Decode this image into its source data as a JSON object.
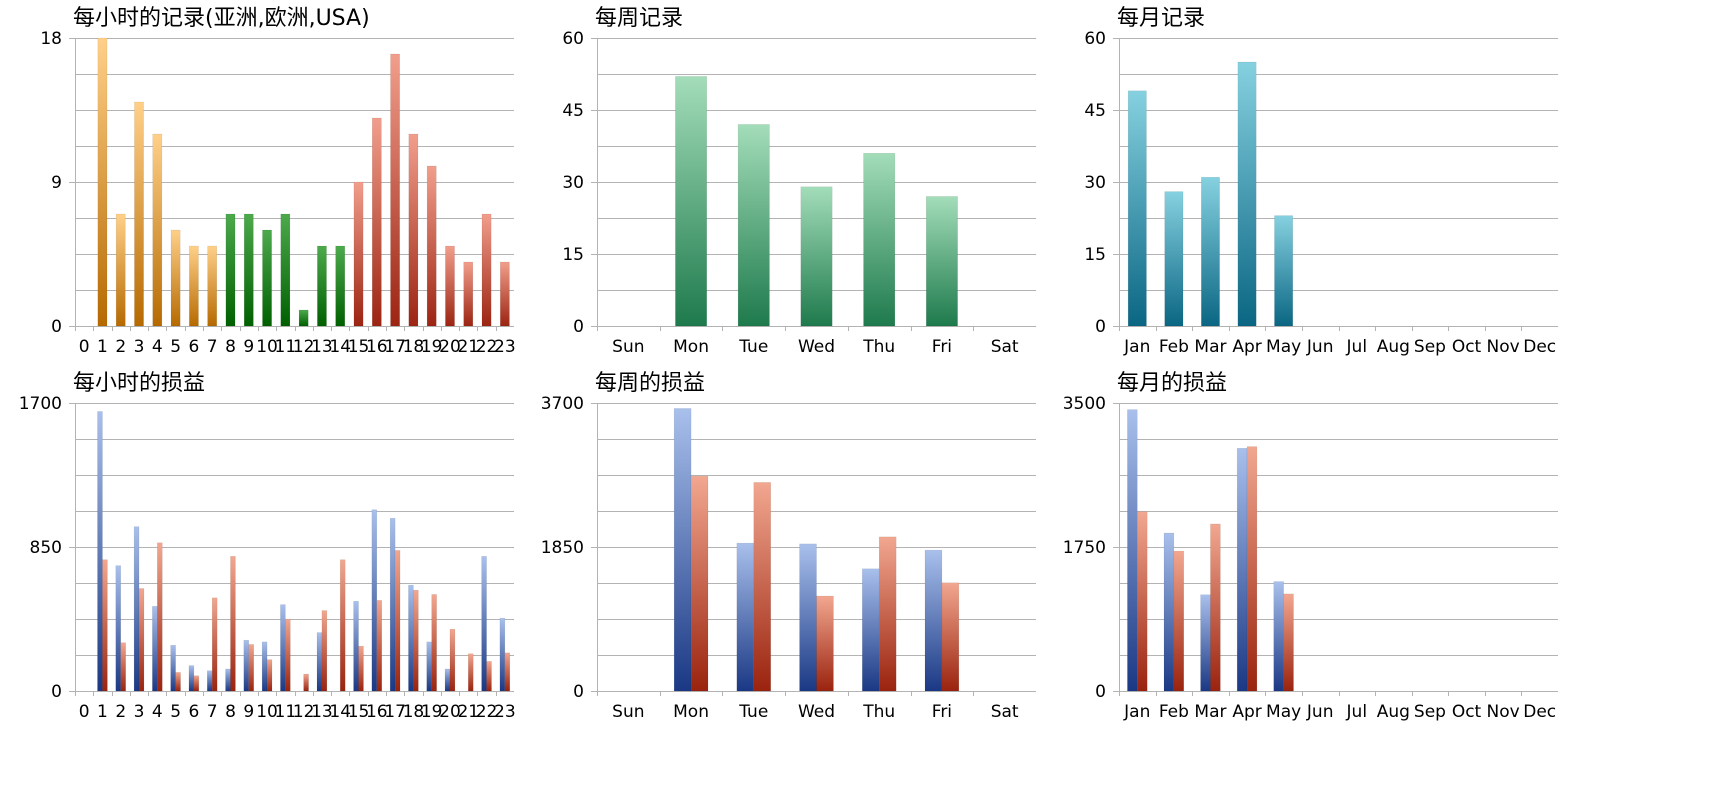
{
  "colors": {
    "hourly_asia_top": "#FFD089",
    "hourly_asia_bottom": "#B66A00",
    "hourly_europe_top": "#4CA94C",
    "hourly_europe_bottom": "#006000",
    "hourly_usa_top": "#F29E8C",
    "hourly_usa_bottom": "#9C2412",
    "weekly_top": "#A3DDB9",
    "weekly_bottom": "#1E7A4C",
    "monthly_top": "#86D1E0",
    "monthly_bottom": "#0A6683",
    "profit_blue_top": "#A9C0EC",
    "profit_blue_bottom": "#1A3884",
    "profit_red_top": "#F2A790",
    "profit_red_bottom": "#9A230E",
    "gridline": "#b3b3b3"
  },
  "chart_data": [
    {
      "type": "bar",
      "title": "每小时的记录(亚洲,欧洲,USA)",
      "categories": [
        "0",
        "1",
        "2",
        "3",
        "4",
        "5",
        "6",
        "7",
        "8",
        "9",
        "10",
        "11",
        "12",
        "13",
        "14",
        "15",
        "16",
        "17",
        "18",
        "19",
        "20",
        "21",
        "22",
        "23"
      ],
      "values": [
        0,
        18,
        7,
        14,
        12,
        6,
        5,
        5,
        7,
        7,
        6,
        7,
        1,
        5,
        5,
        9,
        13,
        17,
        12,
        10,
        5,
        4,
        7,
        4
      ],
      "ylim": [
        0,
        18
      ],
      "yticks": [
        "0",
        "9",
        "18"
      ],
      "minor_step": 2.25,
      "grid": true,
      "color_groups": [
        {
          "from": 0,
          "to": 7,
          "color_top": "#FFD089",
          "color_bottom": "#B66A00"
        },
        {
          "from": 8,
          "to": 14,
          "color_top": "#4CA94C",
          "color_bottom": "#006000"
        },
        {
          "from": 15,
          "to": 23,
          "color_top": "#F29E8C",
          "color_bottom": "#9C2412"
        }
      ]
    },
    {
      "type": "bar",
      "title": "每周记录",
      "categories": [
        "Sun",
        "Mon",
        "Tue",
        "Wed",
        "Thu",
        "Fri",
        "Sat"
      ],
      "values": [
        0,
        52,
        42,
        29,
        36,
        27,
        0
      ],
      "ylim": [
        0,
        60
      ],
      "yticks": [
        "0",
        "15",
        "30",
        "45",
        "60"
      ],
      "minor_step": 7.5,
      "grid": true,
      "color_top": "#A3DDB9",
      "color_bottom": "#1E7A4C"
    },
    {
      "type": "bar",
      "title": "每月记录",
      "categories": [
        "Jan",
        "Feb",
        "Mar",
        "Apr",
        "May",
        "Jun",
        "Jul",
        "Aug",
        "Sep",
        "Oct",
        "Nov",
        "Dec"
      ],
      "values": [
        49,
        28,
        31,
        55,
        23,
        0,
        0,
        0,
        0,
        0,
        0,
        0
      ],
      "ylim": [
        0,
        60
      ],
      "yticks": [
        "0",
        "15",
        "30",
        "45",
        "60"
      ],
      "minor_step": 7.5,
      "grid": true,
      "color_top": "#86D1E0",
      "color_bottom": "#0A6683"
    },
    {
      "type": "bar",
      "title": "每小时的损益",
      "categories": [
        "0",
        "1",
        "2",
        "3",
        "4",
        "5",
        "6",
        "7",
        "8",
        "9",
        "10",
        "11",
        "12",
        "13",
        "14",
        "15",
        "16",
        "17",
        "18",
        "19",
        "20",
        "21",
        "22",
        "23"
      ],
      "series": [
        {
          "values": [
            0,
            1650,
            740,
            970,
            500,
            270,
            150,
            120,
            130,
            300,
            290,
            510,
            0,
            345,
            0,
            530,
            1070,
            1020,
            625,
            290,
            130,
            0,
            795,
            430
          ]
        },
        {
          "values": [
            0,
            775,
            285,
            605,
            875,
            110,
            90,
            550,
            795,
            275,
            185,
            425,
            100,
            475,
            775,
            265,
            535,
            830,
            595,
            570,
            365,
            220,
            175,
            225
          ]
        }
      ],
      "ylim": [
        0,
        1700
      ],
      "yticks": [
        "0",
        "850",
        "1700"
      ],
      "minor_step": 212.5,
      "grid": true
    },
    {
      "type": "bar",
      "title": "每周的损益",
      "categories": [
        "Sun",
        "Mon",
        "Tue",
        "Wed",
        "Thu",
        "Fri",
        "Sat"
      ],
      "series": [
        {
          "values": [
            0,
            3630,
            1900,
            1890,
            1570,
            1810,
            0
          ]
        },
        {
          "values": [
            0,
            2760,
            2680,
            1220,
            1980,
            1390,
            0
          ]
        }
      ],
      "ylim": [
        0,
        3700
      ],
      "yticks": [
        "0",
        "1850",
        "3700"
      ],
      "minor_step": 462.5,
      "grid": true
    },
    {
      "type": "bar",
      "title": "每月的损益",
      "categories": [
        "Jan",
        "Feb",
        "Mar",
        "Apr",
        "May",
        "Jun",
        "Jul",
        "Aug",
        "Sep",
        "Oct",
        "Nov",
        "Dec"
      ],
      "series": [
        {
          "values": [
            3420,
            1920,
            1170,
            2950,
            1330,
            0,
            0,
            0,
            0,
            0,
            0,
            0
          ]
        },
        {
          "values": [
            2180,
            1700,
            2030,
            2970,
            1180,
            0,
            0,
            0,
            0,
            0,
            0,
            0
          ]
        }
      ],
      "ylim": [
        0,
        3500
      ],
      "yticks": [
        "0",
        "1750",
        "3500"
      ],
      "minor_step": 437.5,
      "grid": true
    }
  ]
}
